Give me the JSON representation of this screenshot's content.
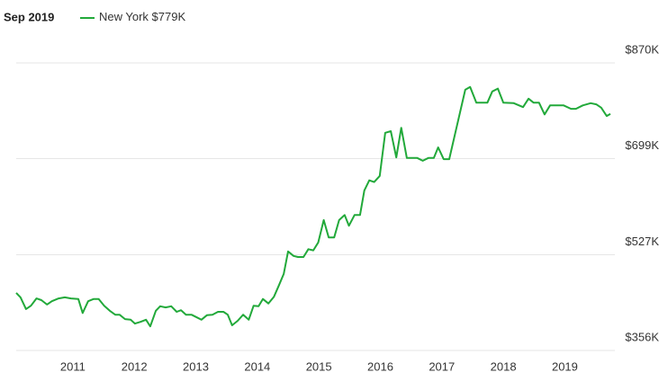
{
  "chart_data": {
    "type": "line",
    "header": "Sep 2019",
    "series": [
      {
        "name": "New York",
        "legend_label": "$779K",
        "color": "#22a93a",
        "x": [
          2010.08,
          2010.15,
          2010.24,
          2010.32,
          2010.41,
          2010.49,
          2010.58,
          2010.66,
          2010.77,
          2010.87,
          2010.97,
          2011.09,
          2011.16,
          2011.25,
          2011.34,
          2011.42,
          2011.51,
          2011.6,
          2011.69,
          2011.76,
          2011.85,
          2011.94,
          2012.01,
          2012.1,
          2012.19,
          2012.26,
          2012.35,
          2012.42,
          2012.51,
          2012.6,
          2012.69,
          2012.76,
          2012.84,
          2012.93,
          2013.02,
          2013.09,
          2013.18,
          2013.27,
          2013.36,
          2013.45,
          2013.52,
          2013.59,
          2013.68,
          2013.77,
          2013.86,
          2013.94,
          2014.02,
          2014.09,
          2014.18,
          2014.27,
          2014.35,
          2014.43,
          2014.5,
          2014.59,
          2014.66,
          2014.75,
          2014.83,
          2014.91,
          2014.99,
          2015.08,
          2015.16,
          2015.25,
          2015.33,
          2015.42,
          2015.49,
          2015.58,
          2015.67,
          2015.74,
          2015.82,
          2015.9,
          2015.99,
          2016.08,
          2016.17,
          2016.26,
          2016.34,
          2016.43,
          2016.52,
          2016.6,
          2016.69,
          2016.78,
          2016.87,
          2016.94,
          2017.03,
          2017.12,
          2017.38,
          2017.46,
          2017.56,
          2017.74,
          2017.82,
          2017.91,
          2018.0,
          2018.17,
          2018.32,
          2018.41,
          2018.49,
          2018.58,
          2018.67,
          2018.76,
          2018.98,
          2019.1,
          2019.18,
          2019.29,
          2019.42,
          2019.51,
          2019.59,
          2019.68,
          2019.74
        ],
        "values": [
          459000,
          451000,
          430000,
          436000,
          449000,
          446000,
          438000,
          444000,
          449000,
          451000,
          449000,
          448000,
          423000,
          444000,
          448000,
          448000,
          436000,
          427000,
          420000,
          420000,
          412000,
          411000,
          404000,
          407000,
          411000,
          399000,
          427000,
          435000,
          433000,
          435000,
          425000,
          428000,
          420000,
          420000,
          415000,
          411000,
          419000,
          420000,
          425000,
          425000,
          420000,
          401000,
          409000,
          420000,
          411000,
          436000,
          435000,
          448000,
          440000,
          452000,
          472000,
          493000,
          533000,
          525000,
          523000,
          523000,
          537000,
          535000,
          549000,
          589000,
          558000,
          558000,
          589000,
          598000,
          579000,
          598000,
          598000,
          642000,
          660000,
          657000,
          668000,
          745000,
          748000,
          701000,
          754000,
          700000,
          700000,
          700000,
          695000,
          700000,
          700000,
          719000,
          698000,
          698000,
          822000,
          827000,
          799000,
          799000,
          819000,
          824000,
          799000,
          798000,
          791000,
          806000,
          799000,
          799000,
          778000,
          794000,
          794000,
          788000,
          788000,
          794000,
          798000,
          796000,
          790000,
          775000,
          779000
        ]
      }
    ],
    "xlim": [
      2010.08,
      2019.74
    ],
    "xticks": [
      2011,
      2012,
      2013,
      2014,
      2015,
      2016,
      2017,
      2018,
      2019
    ],
    "ylim": [
      356000,
      870000
    ],
    "yticks": [
      {
        "value": 356000,
        "label": "$356K"
      },
      {
        "value": 527000,
        "label": "$527K"
      },
      {
        "value": 699000,
        "label": "$699K"
      },
      {
        "value": 870000,
        "label": "$870K"
      }
    ],
    "grid": true
  }
}
